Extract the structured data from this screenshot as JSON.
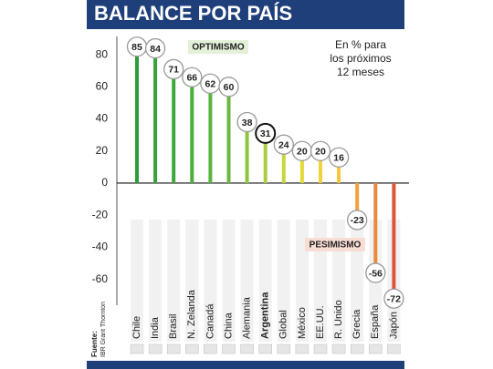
{
  "chart_data": {
    "type": "lollipop",
    "title": "BALANCE POR PAÍS",
    "categories": [
      "Chile",
      "India",
      "Brasil",
      "N. Zelanda",
      "Canadá",
      "China",
      "Alemania",
      "Argentina",
      "Global",
      "México",
      "EE.UU.",
      "R. Unido",
      "Grecia",
      "España",
      "Japón"
    ],
    "values": [
      85,
      84,
      71,
      66,
      62,
      60,
      38,
      31,
      24,
      20,
      20,
      16,
      -23,
      -56,
      -72
    ],
    "colors": [
      "#2e9b3a",
      "#36a23b",
      "#3fa83c",
      "#4aae3d",
      "#58b43e",
      "#68b93f",
      "#8cc43f",
      "#a9cd3f",
      "#c8d53c",
      "#e3d93a",
      "#f0d43a",
      "#f3c73a",
      "#f0a23a",
      "#e98a3c",
      "#d9553a"
    ],
    "highlight": "Argentina",
    "ylim": [
      -75,
      88
    ],
    "yticks": [
      -60,
      -40,
      -20,
      0,
      20,
      40,
      60,
      80
    ],
    "grid": false,
    "annotations": [
      "OPTIMISMO",
      "PESIMISMO"
    ],
    "note": [
      "En % para",
      "los próximos",
      "12 meses"
    ],
    "source": [
      "Fuente:",
      "IBR Grant Thornton"
    ]
  }
}
